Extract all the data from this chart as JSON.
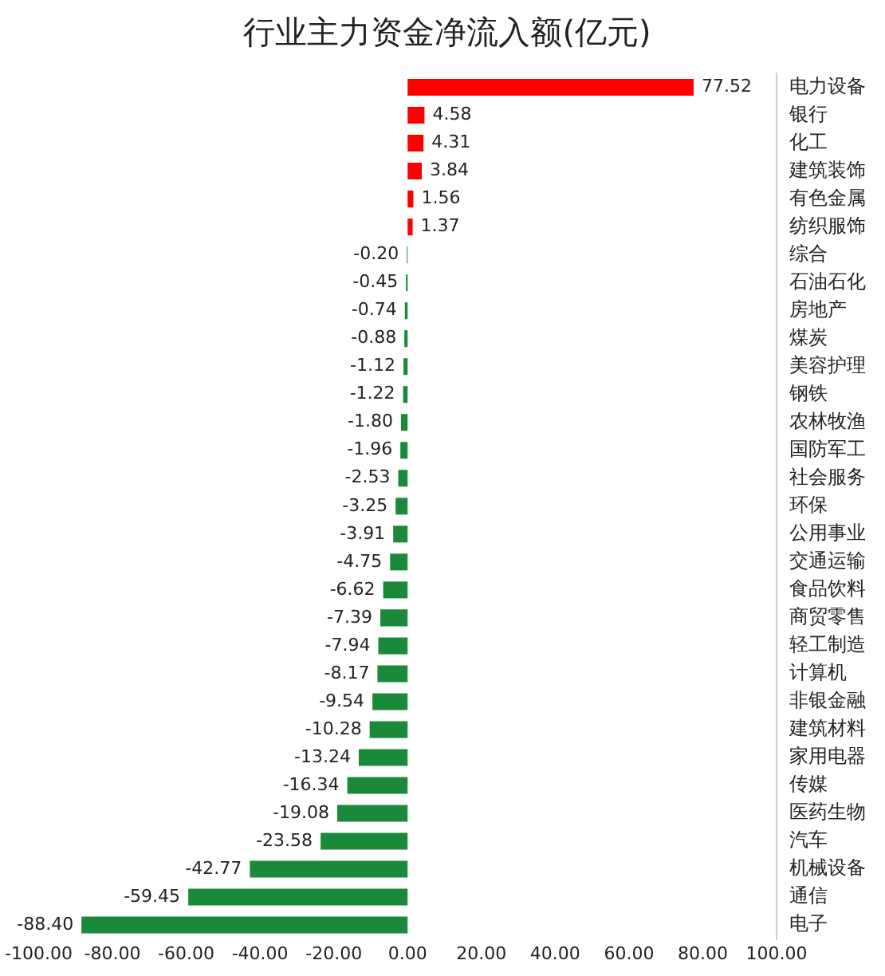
{
  "chart_data": {
    "type": "bar",
    "orientation": "horizontal",
    "title": "行业主力资金净流入额(亿元)",
    "categories": [
      "电力设备",
      "银行",
      "化工",
      "建筑装饰",
      "有色金属",
      "纺织服饰",
      "综合",
      "石油石化",
      "房地产",
      "煤炭",
      "美容护理",
      "钢铁",
      "农林牧渔",
      "国防军工",
      "社会服务",
      "环保",
      "公用事业",
      "交通运输",
      "食品饮料",
      "商贸零售",
      "轻工制造",
      "计算机",
      "非银金融",
      "建筑材料",
      "家用电器",
      "传媒",
      "医药生物",
      "汽车",
      "机械设备",
      "通信",
      "电子"
    ],
    "values": [
      77.52,
      4.58,
      4.31,
      3.84,
      1.56,
      1.37,
      -0.2,
      -0.45,
      -0.74,
      -0.88,
      -1.12,
      -1.22,
      -1.8,
      -1.96,
      -2.53,
      -3.25,
      -3.91,
      -4.75,
      -6.62,
      -7.39,
      -7.94,
      -8.17,
      -9.54,
      -10.28,
      -13.24,
      -16.34,
      -19.08,
      -23.58,
      -42.77,
      -59.45,
      -88.4
    ],
    "value_labels": [
      "77.52",
      "4.58",
      "4.31",
      "3.84",
      "1.56",
      "1.37",
      "-0.20",
      "-0.45",
      "-0.74",
      "-0.88",
      "-1.12",
      "-1.22",
      "-1.80",
      "-1.96",
      "-2.53",
      "-3.25",
      "-3.91",
      "-4.75",
      "-6.62",
      "-7.39",
      "-7.94",
      "-8.17",
      "-9.54",
      "-10.28",
      "-13.24",
      "-16.34",
      "-19.08",
      "-23.58",
      "-42.77",
      "-59.45",
      "-88.40"
    ],
    "colors": [
      "#ff0000",
      "#ff0000",
      "#ff0000",
      "#ff0000",
      "#ff0000",
      "#ff0000",
      "#1a8a3a",
      "#1a8a3a",
      "#1a8a3a",
      "#1a8a3a",
      "#1a8a3a",
      "#1a8a3a",
      "#1a8a3a",
      "#1a8a3a",
      "#1a8a3a",
      "#1a8a3a",
      "#1a8a3a",
      "#1a8a3a",
      "#1a8a3a",
      "#1a8a3a",
      "#1a8a3a",
      "#1a8a3a",
      "#1a8a3a",
      "#1a8a3a",
      "#1a8a3a",
      "#1a8a3a",
      "#1a8a3a",
      "#1a8a3a",
      "#1a8a3a",
      "#1a8a3a",
      "#1a8a3a"
    ],
    "xlim": [
      -100,
      100
    ],
    "xticks": [
      {
        "value": -100,
        "label": "-100.00"
      },
      {
        "value": -80,
        "label": "-80.00"
      },
      {
        "value": -60,
        "label": "-60.00"
      },
      {
        "value": -40,
        "label": "-40.00"
      },
      {
        "value": -20,
        "label": "-20.00"
      },
      {
        "value": 0,
        "label": "0.00"
      },
      {
        "value": 20,
        "label": "20.00"
      },
      {
        "value": 40,
        "label": "40.00"
      },
      {
        "value": 60,
        "label": "60.00"
      },
      {
        "value": 80,
        "label": "80.00"
      },
      {
        "value": 100,
        "label": "100.00"
      }
    ],
    "grid": false,
    "legend": false
  }
}
